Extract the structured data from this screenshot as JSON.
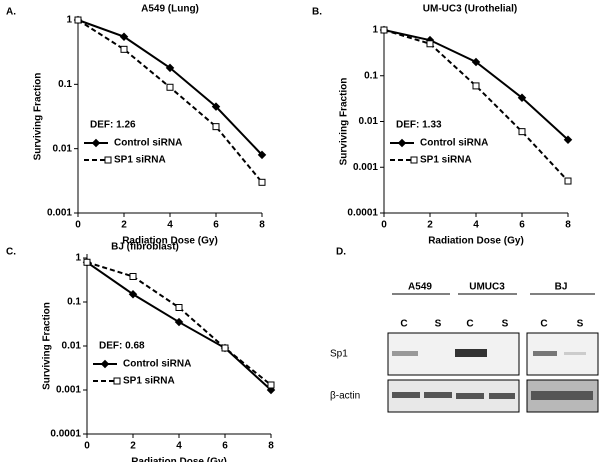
{
  "chart_data": [
    {
      "type": "line",
      "panel_label": "A.",
      "title": "A549 (Lung)",
      "annotation": "DEF:  1.26",
      "x_label": "Radiation Dose (Gy)",
      "y_label": "Surviving Fraction",
      "log_y": true,
      "x": [
        0,
        2,
        4,
        6,
        8
      ],
      "xlim": [
        0,
        8
      ],
      "xticks": [
        0,
        2,
        4,
        6,
        8
      ],
      "ylim": [
        0.001,
        1
      ],
      "yticks": [
        0.001,
        0.01,
        0.1,
        1
      ],
      "series": [
        {
          "name": "Control siRNA",
          "color": "#000000",
          "values": [
            1,
            0.55,
            0.18,
            0.045,
            0.008
          ]
        },
        {
          "name": "SP1 siRNA",
          "color": "#000000",
          "values": [
            1,
            0.35,
            0.09,
            0.022,
            0.003
          ]
        }
      ]
    },
    {
      "type": "line",
      "panel_label": "B.",
      "title": "UM-UC3 (Urothelial)",
      "annotation": "DEF:  1.33",
      "x_label": "Radiation Dose (Gy)",
      "y_label": "Surviving Fraction",
      "log_y": true,
      "x": [
        0,
        2,
        4,
        6,
        8
      ],
      "xlim": [
        0,
        8
      ],
      "xticks": [
        0,
        2,
        4,
        6,
        8
      ],
      "ylim": [
        0.0001,
        1
      ],
      "yticks": [
        0.0001,
        0.001,
        0.01,
        0.1,
        1
      ],
      "series": [
        {
          "name": "Control siRNA",
          "color": "#000000",
          "values": [
            1,
            0.6,
            0.2,
            0.033,
            0.004
          ]
        },
        {
          "name": "SP1 siRNA",
          "color": "#000000",
          "values": [
            1,
            0.5,
            0.06,
            0.006,
            0.0005
          ]
        }
      ]
    },
    {
      "type": "line",
      "panel_label": "C.",
      "title": "BJ (fibroblast)",
      "annotation": "DEF:  0.68",
      "x_label": "Radiation Dose (Gy)",
      "y_label": "Surviving Fraction",
      "log_y": true,
      "x": [
        0,
        2,
        4,
        6,
        8
      ],
      "xlim": [
        0,
        8
      ],
      "xticks": [
        0,
        2,
        4,
        6,
        8
      ],
      "ylim": [
        0.0001,
        1
      ],
      "yticks": [
        0.0001,
        0.001,
        0.01,
        0.1,
        1
      ],
      "series": [
        {
          "name": "Control siRNA",
          "color": "#000000",
          "values": [
            0.8,
            0.15,
            0.035,
            0.009,
            0.001
          ]
        },
        {
          "name": "SP1 siRNA",
          "color": "#000000",
          "values": [
            0.8,
            0.38,
            0.075,
            0.009,
            0.0013
          ]
        }
      ]
    }
  ],
  "blot": {
    "panel_label": "D.",
    "groups": [
      "A549",
      "UMUC3",
      "BJ"
    ],
    "lanes": [
      "C",
      "S",
      "C",
      "S",
      "C",
      "S"
    ],
    "rows": [
      "Sp1",
      "β-actin"
    ]
  }
}
